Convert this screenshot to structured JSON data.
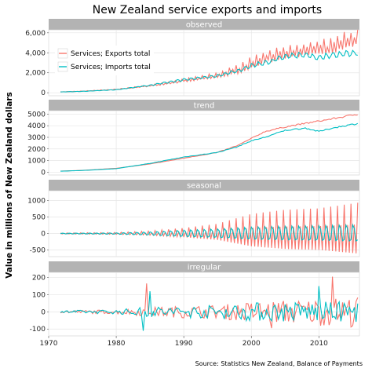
{
  "chart_data": {
    "type": "line",
    "title": "New Zealand service exports and imports",
    "ylabel": "Value in millions of New Zealand dollars",
    "caption": "Source: Statistics New Zealand, Balance of Payments",
    "grid": true,
    "legend_placement": "top-left inside first panel",
    "x_ticks": [
      "1970",
      "1980",
      "1990",
      "2000",
      "2010"
    ],
    "xlim": [
      1970,
      2016
    ],
    "series": [
      {
        "name": "Services; Exports total",
        "color": "#F8766D"
      },
      {
        "name": "Services; Imports total",
        "color": "#00BFC4"
      }
    ],
    "panels": [
      {
        "label": "observed",
        "ylim": [
          -300,
          6300
        ],
        "y_ticks": [
          "0",
          "2,000",
          "4,000",
          "6,000"
        ],
        "y_tick_values": [
          0,
          2000,
          4000,
          6000
        ],
        "exports_points": [
          [
            1971.75,
            90
          ],
          [
            1975,
            150
          ],
          [
            1980,
            330
          ],
          [
            1985,
            700
          ],
          [
            1990,
            1200
          ],
          [
            1995,
            1700
          ],
          [
            1998,
            2300
          ],
          [
            2000,
            2900
          ],
          [
            2002,
            3500
          ],
          [
            2005,
            3900
          ],
          [
            2008,
            4200
          ],
          [
            2012,
            4600
          ],
          [
            2015.75,
            5500
          ]
        ],
        "imports_points": [
          [
            1971.75,
            80
          ],
          [
            1975,
            140
          ],
          [
            1980,
            300
          ],
          [
            1985,
            750
          ],
          [
            1990,
            1300
          ],
          [
            1995,
            1700
          ],
          [
            1998,
            2200
          ],
          [
            2000,
            2700
          ],
          [
            2002,
            3000
          ],
          [
            2005,
            3600
          ],
          [
            2008,
            3800
          ],
          [
            2010,
            3500
          ],
          [
            2012,
            3800
          ],
          [
            2015.75,
            4000
          ]
        ]
      },
      {
        "label": "trend",
        "ylim": [
          -250,
          5300
        ],
        "y_ticks": [
          "0",
          "1000",
          "2000",
          "3000",
          "4000",
          "5000"
        ],
        "y_tick_values": [
          0,
          1000,
          2000,
          3000,
          4000,
          5000
        ],
        "exports_points": [
          [
            1971.75,
            90
          ],
          [
            1975,
            150
          ],
          [
            1980,
            330
          ],
          [
            1985,
            700
          ],
          [
            1990,
            1200
          ],
          [
            1995,
            1700
          ],
          [
            1998,
            2300
          ],
          [
            2000,
            2900
          ],
          [
            2002,
            3500
          ],
          [
            2005,
            3900
          ],
          [
            2008,
            4200
          ],
          [
            2012,
            4600
          ],
          [
            2015.75,
            5000
          ]
        ],
        "imports_points": [
          [
            1971.75,
            80
          ],
          [
            1975,
            140
          ],
          [
            1980,
            300
          ],
          [
            1985,
            750
          ],
          [
            1990,
            1300
          ],
          [
            1995,
            1700
          ],
          [
            1998,
            2200
          ],
          [
            2000,
            2700
          ],
          [
            2002,
            3000
          ],
          [
            2005,
            3600
          ],
          [
            2008,
            3800
          ],
          [
            2010,
            3500
          ],
          [
            2012,
            3800
          ],
          [
            2015.75,
            4200
          ]
        ]
      },
      {
        "label": "seasonal",
        "ylim": [
          -700,
          1300
        ],
        "y_ticks": [
          "-500",
          "0",
          "500",
          "1000"
        ],
        "y_tick_values": [
          -500,
          0,
          500,
          1000
        ],
        "exports_amplitude": [
          [
            1971.75,
            20
          ],
          [
            1980,
            40
          ],
          [
            1985,
            90
          ],
          [
            1990,
            200
          ],
          [
            1995,
            350
          ],
          [
            2000,
            700
          ],
          [
            2005,
            850
          ],
          [
            2010,
            900
          ],
          [
            2015.75,
            1100
          ]
        ],
        "imports_amplitude": [
          [
            1971.75,
            15
          ],
          [
            1980,
            30
          ],
          [
            1985,
            70
          ],
          [
            1990,
            150
          ],
          [
            1995,
            200
          ],
          [
            2000,
            280
          ],
          [
            2005,
            320
          ],
          [
            2010,
            340
          ],
          [
            2015.75,
            380
          ]
        ]
      },
      {
        "label": "irregular",
        "ylim": [
          -140,
          230
        ],
        "y_ticks": [
          "-100",
          "0",
          "100",
          "200"
        ],
        "y_tick_values": [
          -100,
          0,
          100,
          200
        ],
        "exports_amplitude": [
          [
            1971.75,
            8
          ],
          [
            1980,
            12
          ],
          [
            1984,
            25
          ],
          [
            1990,
            35
          ],
          [
            1995,
            40
          ],
          [
            2000,
            60
          ],
          [
            2005,
            70
          ],
          [
            2010,
            80
          ],
          [
            2015.75,
            90
          ]
        ],
        "imports_amplitude": [
          [
            1971.75,
            8
          ],
          [
            1980,
            12
          ],
          [
            1984,
            30
          ],
          [
            1990,
            35
          ],
          [
            1995,
            40
          ],
          [
            2000,
            55
          ],
          [
            2005,
            60
          ],
          [
            2010,
            60
          ],
          [
            2015.75,
            60
          ]
        ]
      }
    ]
  }
}
